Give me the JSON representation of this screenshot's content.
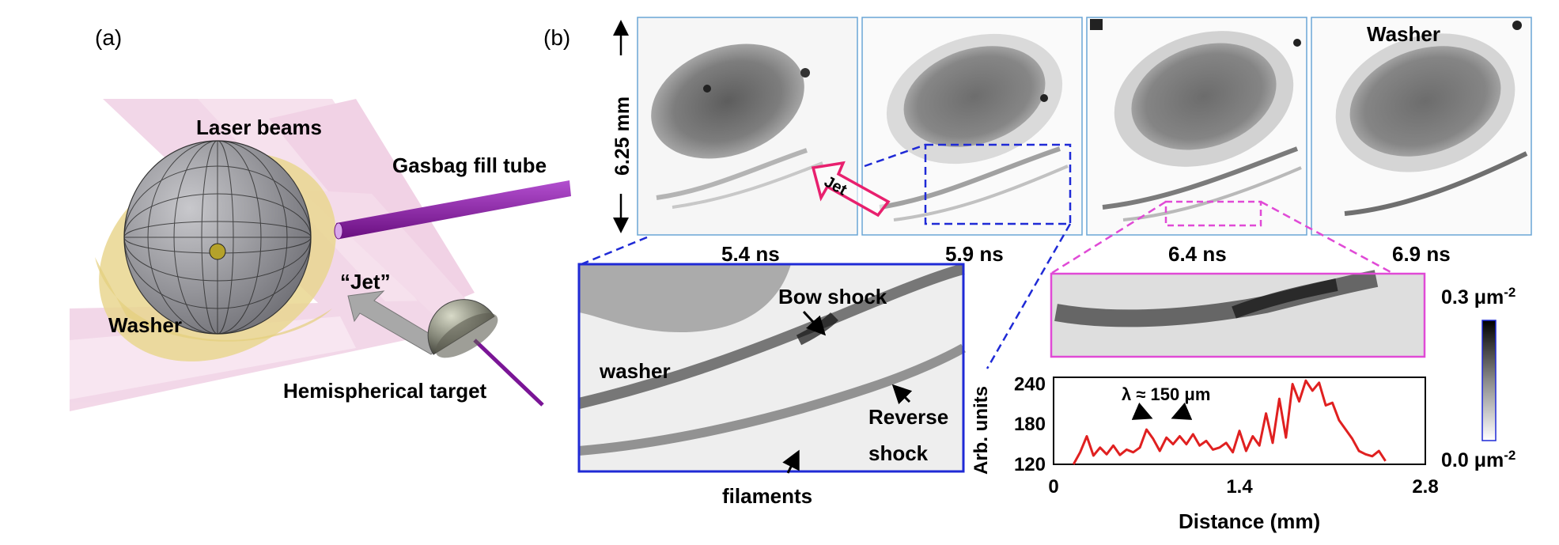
{
  "panel_a": {
    "label": "(a)",
    "labels": {
      "laser_beams": "Laser beams",
      "gasbag_fill_tube": "Gasbag fill tube",
      "jet": "“Jet”",
      "washer": "Washer",
      "hemispherical_target": "Hemispherical target"
    },
    "colors": {
      "laser": "#e9b8d6",
      "washer": "#e9d68f",
      "sphere": "#9a9aa0",
      "tube": "#8e1ca8",
      "jet_arrow": "#a9a9a9",
      "target": "#7f8173"
    }
  },
  "panel_b": {
    "label": "(b)",
    "scale_label": "6.25 mm",
    "frames": [
      {
        "time": "5.4 ns"
      },
      {
        "time": "5.9 ns"
      },
      {
        "time": "6.4 ns"
      },
      {
        "time": "6.9 ns",
        "title": "Washer"
      }
    ],
    "jet_label": "Jet",
    "zoom_labels": {
      "washer": "washer",
      "bow_shock": "Bow shock",
      "reverse_shock_1": "Reverse",
      "reverse_shock_2": "shock",
      "filaments": "filaments"
    },
    "colors": {
      "frame_border": "#6aa6d6",
      "zoom_blue": "#1f2ad6",
      "zoom_magenta": "#e04ad6",
      "jet_arrow": "#e8206e",
      "lineout": "#e02020"
    }
  },
  "colorbar": {
    "top_label": "0.3 μm",
    "top_exp": "-2",
    "bottom_label": "0.0 μm",
    "bottom_exp": "-2"
  },
  "chart_data": {
    "type": "line",
    "xlabel": "Distance (mm)",
    "ylabel": "Arb. units",
    "xlim": [
      0,
      2.8
    ],
    "ylim": [
      120,
      250
    ],
    "xticks": [
      "0",
      "1.4",
      "2.8"
    ],
    "yticks": [
      "120",
      "180",
      "240"
    ],
    "annotation": "λ ≈ 150 μm",
    "series": [
      {
        "x": [
          0.15,
          0.2,
          0.25,
          0.3,
          0.35,
          0.4,
          0.45,
          0.5,
          0.55,
          0.6,
          0.65,
          0.7,
          0.75,
          0.8,
          0.85,
          0.9,
          0.95,
          1.0,
          1.05,
          1.1,
          1.15,
          1.2,
          1.25,
          1.3,
          1.35,
          1.4,
          1.45,
          1.5,
          1.55,
          1.6,
          1.65,
          1.7,
          1.75,
          1.8,
          1.85,
          1.9,
          1.95,
          2.0,
          2.05,
          2.1,
          2.15,
          2.2,
          2.25,
          2.3,
          2.35,
          2.4,
          2.45,
          2.5
        ],
        "values": [
          120,
          138,
          162,
          133,
          145,
          135,
          148,
          134,
          142,
          138,
          145,
          172,
          158,
          140,
          160,
          150,
          162,
          150,
          165,
          148,
          155,
          142,
          145,
          152,
          138,
          170,
          140,
          162,
          148,
          196,
          152,
          218,
          160,
          240,
          214,
          245,
          230,
          242,
          208,
          212,
          186,
          172,
          158,
          140,
          135,
          132,
          140,
          125
        ]
      }
    ]
  }
}
